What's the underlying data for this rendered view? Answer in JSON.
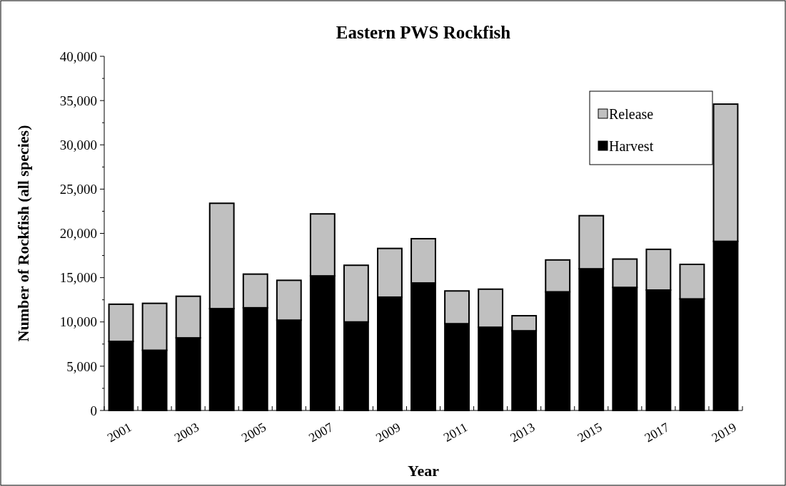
{
  "chart_data": {
    "type": "bar",
    "title": "Eastern PWS Rockfish",
    "xlabel": "Year",
    "ylabel": "Number of Rockfish (all species)",
    "categories": [
      "2001",
      null,
      "2003",
      null,
      "2005",
      null,
      "2007",
      null,
      "2009",
      null,
      "2011",
      null,
      "2013",
      null,
      "2015",
      null,
      "2017",
      null,
      "2019"
    ],
    "stacked": true,
    "legend": "top right",
    "ylim": [
      0,
      40000
    ],
    "yticks": [
      {
        "value": 0,
        "label": "0"
      },
      {
        "value": 5000,
        "label": "5,000"
      },
      {
        "value": 10000,
        "label": "10,000"
      },
      {
        "value": 15000,
        "label": "15,000"
      },
      {
        "value": 20000,
        "label": "20,000"
      },
      {
        "value": 25000,
        "label": "25,000"
      },
      {
        "value": 30000,
        "label": "30,000"
      },
      {
        "value": 35000,
        "label": "35,000"
      },
      {
        "value": 40000,
        "label": "40,000"
      }
    ],
    "series": [
      {
        "name": "Harvest",
        "color": "#000000",
        "values": [
          7800,
          6800,
          8200,
          11500,
          11600,
          10200,
          15200,
          10000,
          12800,
          14400,
          9800,
          9400,
          9000,
          13400,
          16000,
          13900,
          13600,
          12600,
          19100
        ]
      },
      {
        "name": "Release",
        "color": "#c0c0c0",
        "values": [
          4200,
          5300,
          4700,
          11900,
          3800,
          4500,
          7000,
          6400,
          5500,
          5000,
          3700,
          4300,
          1700,
          3600,
          6000,
          3200,
          4600,
          3900,
          15500
        ]
      }
    ]
  }
}
